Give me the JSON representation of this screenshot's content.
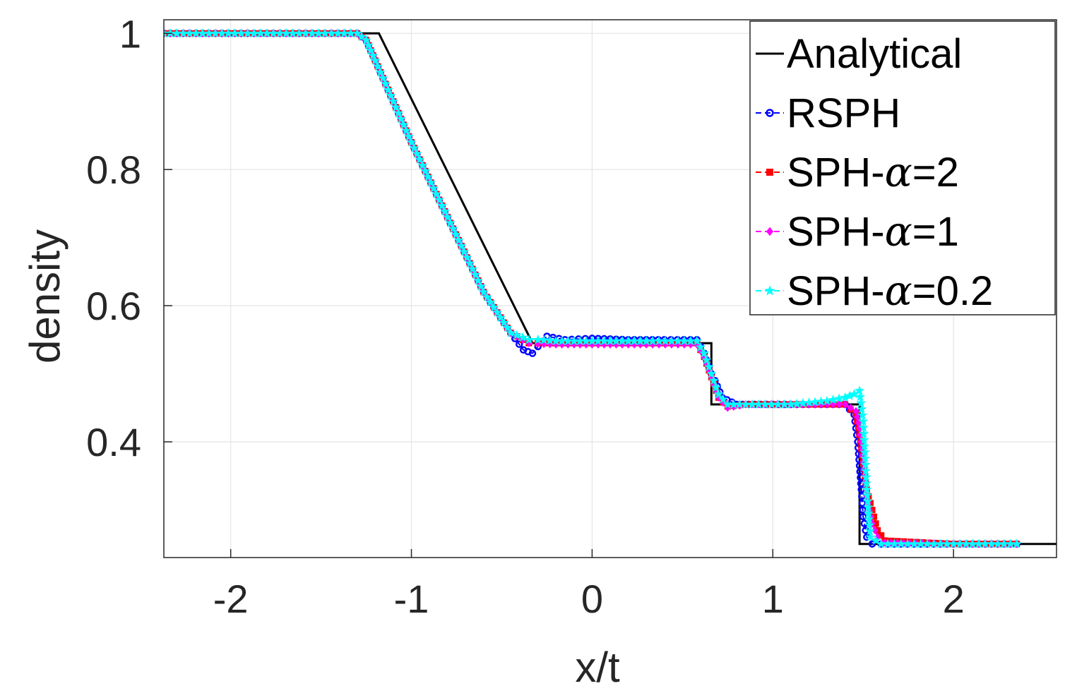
{
  "chart_data": {
    "type": "line",
    "title": "",
    "xlabel": "x/t",
    "ylabel": "density",
    "xlim": [
      -2.37,
      2.57
    ],
    "ylim": [
      0.23,
      1.02
    ],
    "xticks": [
      -2,
      -1,
      0,
      1,
      2
    ],
    "xtick_labels": [
      "-2",
      "-1",
      "0",
      "1",
      "2"
    ],
    "yticks": [
      0.4,
      0.6,
      0.8,
      1.0
    ],
    "ytick_labels": [
      "0.4",
      "0.6",
      "0.8",
      "1"
    ],
    "grid": true,
    "legend_placement": "top-right",
    "series": [
      {
        "name": "Analytical",
        "label_prefix": "Analytical",
        "alpha_value": "",
        "color": "#000000",
        "line": "solid",
        "marker": "none",
        "x": [
          -2.37,
          -1.18,
          -0.33,
          0.66,
          0.66,
          1.48,
          1.48,
          2.57
        ],
        "y": [
          1.0,
          1.0,
          0.545,
          0.545,
          0.455,
          0.455,
          0.25,
          0.25
        ]
      },
      {
        "name": "RSPH",
        "label_prefix": "RSPH",
        "alpha_value": "",
        "color": "#0000ff",
        "line": "dashed",
        "marker": "circle",
        "x": [
          -2.37,
          -1.3,
          -1.25,
          -1.2,
          -1.1,
          -1.0,
          -0.8,
          -0.6,
          -0.45,
          -0.38,
          -0.33,
          -0.3,
          -0.25,
          -0.15,
          0.0,
          0.2,
          0.4,
          0.58,
          0.62,
          0.66,
          0.68,
          0.72,
          0.8,
          1.0,
          1.2,
          1.4,
          1.45,
          1.47,
          1.49,
          1.5,
          1.52,
          1.55,
          1.6,
          2.0,
          2.35
        ],
        "y": [
          1.0,
          1.0,
          0.99,
          0.96,
          0.9,
          0.84,
          0.73,
          0.62,
          0.56,
          0.535,
          0.53,
          0.54,
          0.555,
          0.55,
          0.552,
          0.55,
          0.55,
          0.55,
          0.53,
          0.5,
          0.49,
          0.465,
          0.455,
          0.455,
          0.455,
          0.455,
          0.44,
          0.4,
          0.33,
          0.29,
          0.26,
          0.25,
          0.25,
          0.25,
          0.25
        ]
      },
      {
        "name": "SPH-α=2",
        "label_prefix": "SPH-",
        "alpha_value": "=2",
        "color": "#ff0000",
        "line": "dashed",
        "marker": "square",
        "x": [
          -2.37,
          -1.3,
          -1.25,
          -1.2,
          -1.1,
          -1.0,
          -0.8,
          -0.6,
          -0.45,
          -0.35,
          -0.3,
          -0.2,
          0.0,
          0.3,
          0.58,
          0.62,
          0.66,
          0.7,
          0.75,
          0.85,
          1.2,
          1.4,
          1.46,
          1.48,
          1.5,
          1.52,
          1.55,
          1.58,
          1.62,
          2.0,
          2.35
        ],
        "y": [
          1.0,
          1.0,
          0.99,
          0.96,
          0.9,
          0.84,
          0.73,
          0.62,
          0.56,
          0.545,
          0.545,
          0.545,
          0.545,
          0.545,
          0.545,
          0.525,
          0.495,
          0.465,
          0.452,
          0.455,
          0.455,
          0.455,
          0.44,
          0.41,
          0.37,
          0.33,
          0.3,
          0.27,
          0.255,
          0.25,
          0.25
        ]
      },
      {
        "name": "SPH-α=1",
        "label_prefix": "SPH-",
        "alpha_value": "=1",
        "color": "#ff00ff",
        "line": "dashed",
        "marker": "diamond",
        "x": [
          -2.37,
          -1.3,
          -1.25,
          -1.2,
          -1.1,
          -1.0,
          -0.8,
          -0.6,
          -0.45,
          -0.35,
          -0.3,
          -0.2,
          0.0,
          0.3,
          0.58,
          0.62,
          0.66,
          0.7,
          0.75,
          0.85,
          1.2,
          1.4,
          1.46,
          1.48,
          1.5,
          1.52,
          1.55,
          1.58,
          1.62,
          2.0,
          2.35
        ],
        "y": [
          1.0,
          1.0,
          0.99,
          0.96,
          0.9,
          0.84,
          0.73,
          0.62,
          0.56,
          0.545,
          0.544,
          0.543,
          0.543,
          0.543,
          0.543,
          0.525,
          0.495,
          0.465,
          0.45,
          0.455,
          0.455,
          0.455,
          0.445,
          0.42,
          0.37,
          0.32,
          0.28,
          0.26,
          0.252,
          0.25,
          0.25
        ]
      },
      {
        "name": "SPH-α=0.2",
        "label_prefix": "SPH-",
        "alpha_value": "=0.2",
        "color": "#00ffff",
        "line": "dashed",
        "marker": "star",
        "x": [
          -2.37,
          -1.3,
          -1.25,
          -1.2,
          -1.1,
          -1.0,
          -0.8,
          -0.6,
          -0.45,
          -0.35,
          -0.3,
          -0.2,
          0.0,
          0.3,
          0.58,
          0.62,
          0.66,
          0.7,
          0.75,
          0.85,
          1.1,
          1.3,
          1.4,
          1.45,
          1.48,
          1.5,
          1.52,
          1.54,
          1.6,
          2.0,
          2.35
        ],
        "y": [
          1.0,
          1.0,
          0.99,
          0.96,
          0.9,
          0.84,
          0.73,
          0.62,
          0.56,
          0.55,
          0.55,
          0.548,
          0.548,
          0.548,
          0.548,
          0.53,
          0.5,
          0.47,
          0.455,
          0.455,
          0.455,
          0.46,
          0.465,
          0.47,
          0.475,
          0.43,
          0.33,
          0.26,
          0.25,
          0.25,
          0.25
        ]
      }
    ]
  }
}
